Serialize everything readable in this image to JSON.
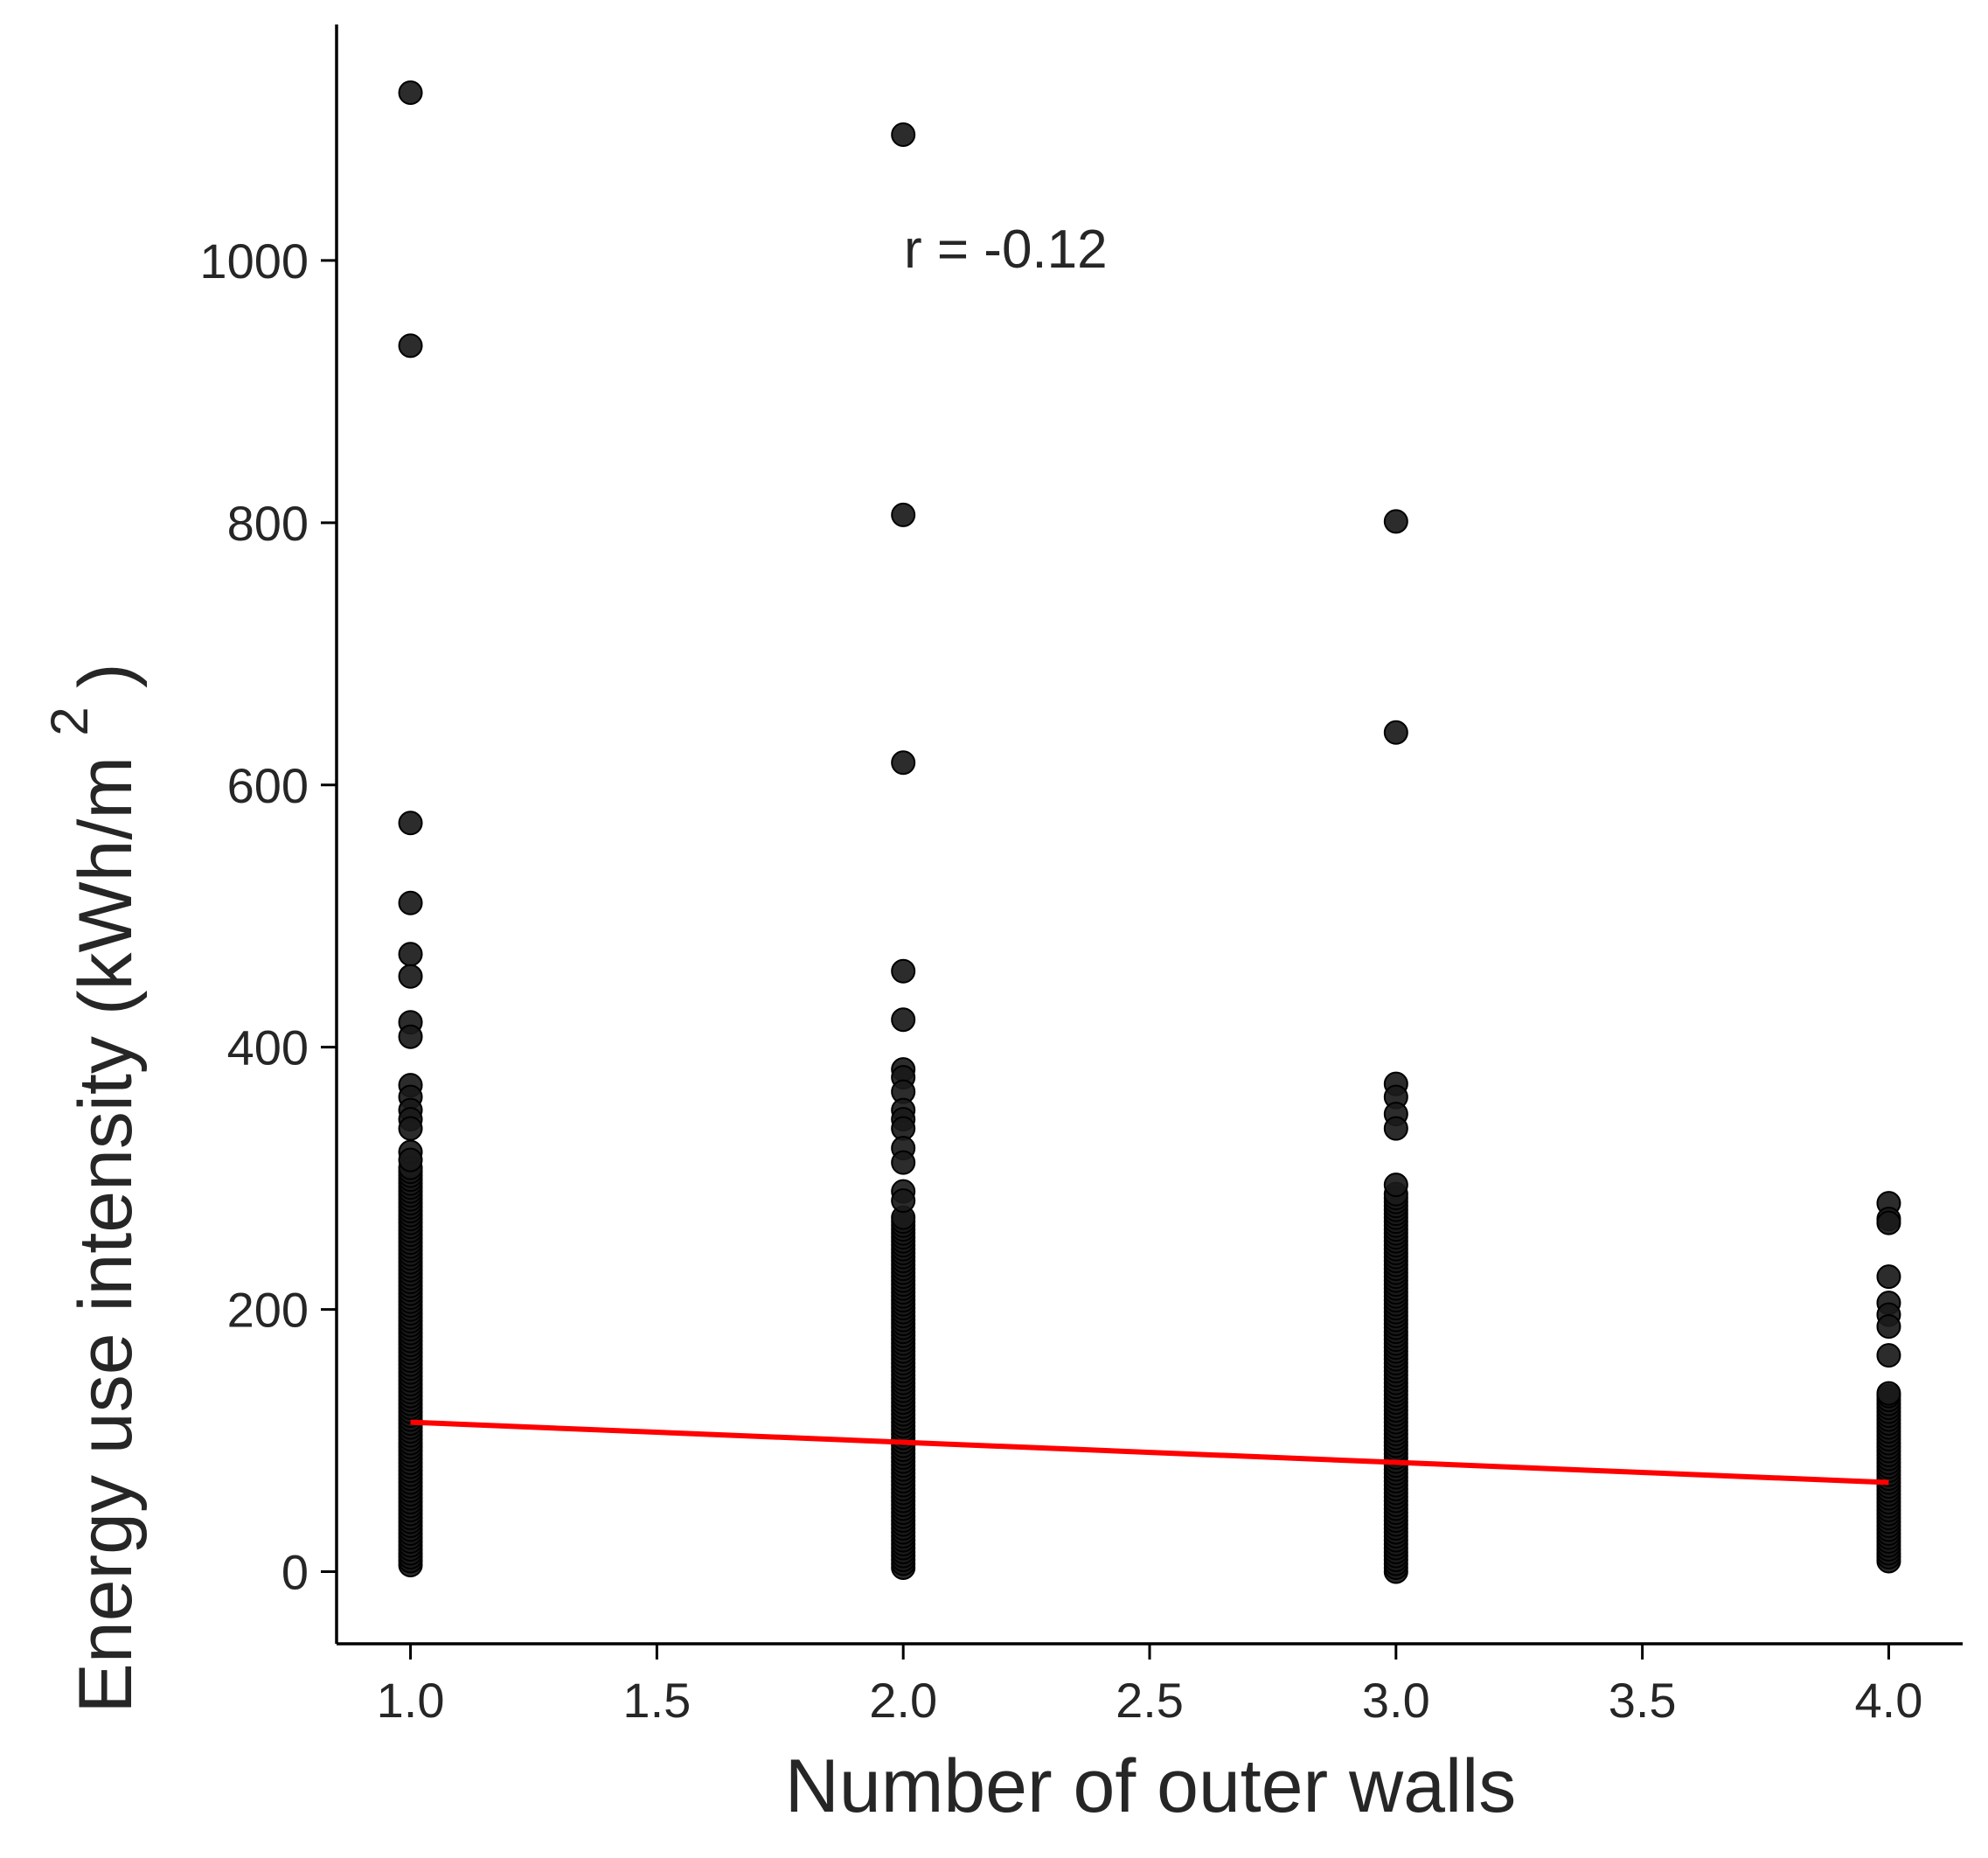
{
  "chart_data": {
    "type": "scatter",
    "title": "",
    "xlabel": "Number of outer walls",
    "ylabel": "Energy use intensity (kWh/m",
    "ylabel_superscript": "2",
    "ylabel_close": ")",
    "annotation": "r = -0.12",
    "xlim": [
      0.85,
      4.15
    ],
    "ylim": [
      -55,
      1180
    ],
    "x_ticks": [
      1.0,
      1.5,
      2.0,
      2.5,
      3.0,
      3.5,
      4.0
    ],
    "x_tick_labels": [
      "1.0",
      "1.5",
      "2.0",
      "2.5",
      "3.0",
      "3.5",
      "4.0"
    ],
    "y_ticks": [
      0,
      200,
      400,
      600,
      800,
      1000
    ],
    "y_tick_labels": [
      "0",
      "200",
      "400",
      "600",
      "800",
      "1000"
    ],
    "grid": false,
    "colors": {
      "points": "#1a1a1a",
      "regression_line": "#ff0000",
      "axis": "#000000",
      "text": "#262626"
    },
    "groups": [
      {
        "x": 1.0,
        "outliers": [
          1128,
          935,
          571,
          510,
          471,
          454,
          419,
          408,
          371,
          362,
          352,
          345,
          338,
          320,
          314
        ],
        "dense_range": [
          5,
          310
        ]
      },
      {
        "x": 2.0,
        "outliers": [
          1096,
          806,
          617,
          458,
          421,
          383,
          377,
          366,
          352,
          345,
          338,
          323,
          312,
          290,
          283
        ],
        "dense_range": [
          3,
          270
        ]
      },
      {
        "x": 3.0,
        "outliers": [
          801,
          640,
          372,
          362,
          349,
          338,
          295
        ],
        "dense_range": [
          0,
          290
        ]
      },
      {
        "x": 4.0,
        "outliers": [
          281,
          269,
          266,
          225,
          205,
          196,
          187,
          165,
          136
        ],
        "dense_range": [
          8,
          135
        ]
      }
    ],
    "regression": {
      "x": [
        1.0,
        4.0
      ],
      "y": [
        114,
        68
      ]
    }
  }
}
